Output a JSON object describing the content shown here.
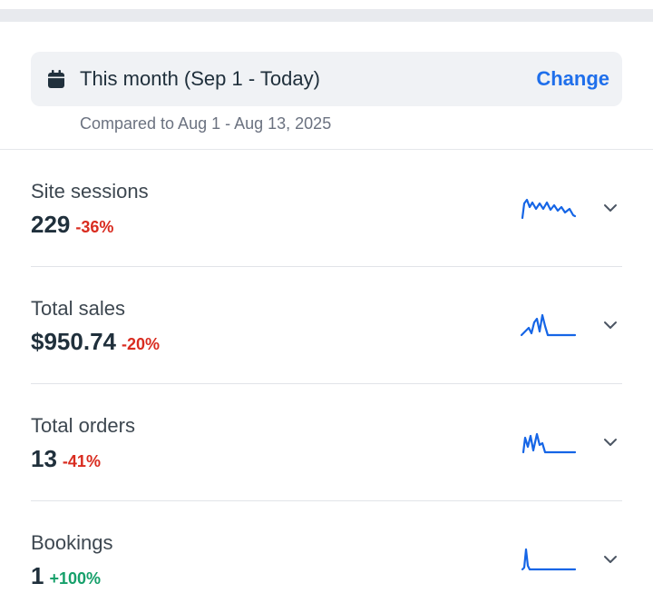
{
  "date_range": {
    "label": "This month (Sep 1 - Today)",
    "change_label": "Change",
    "compare_text": "Compared to Aug 1 - Aug 13, 2025",
    "icon": "calendar-icon"
  },
  "colors": {
    "accent": "#1f6feb",
    "negative": "#d92c20",
    "positive": "#16a06b",
    "sparkline": "#1565e6"
  },
  "metrics": [
    {
      "label": "Site sessions",
      "value": "229",
      "delta": "-36%",
      "trend": "down"
    },
    {
      "label": "Total sales",
      "value": "$950.74",
      "delta": "-20%",
      "trend": "down"
    },
    {
      "label": "Total orders",
      "value": "13",
      "delta": "-41%",
      "trend": "down"
    },
    {
      "label": "Bookings",
      "value": "1",
      "delta": "+100%",
      "trend": "up"
    }
  ]
}
